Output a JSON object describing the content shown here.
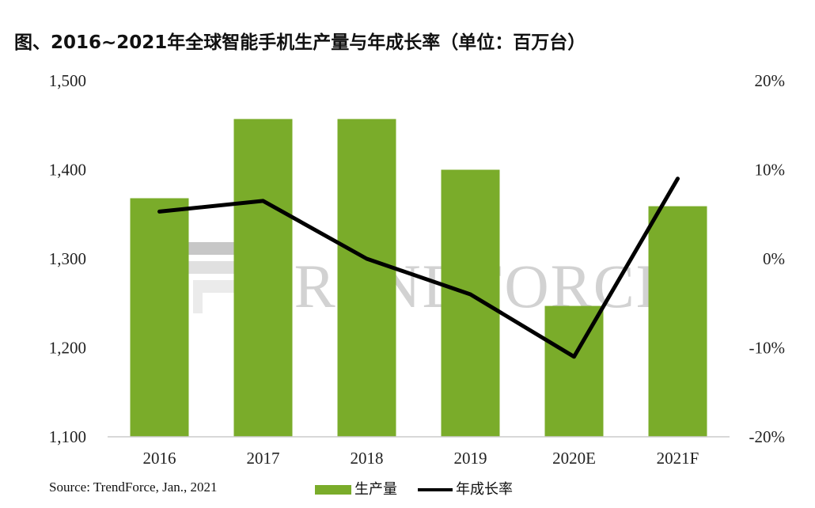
{
  "title": "图、2016~2021年全球智能手机生产量与年成长率（单位：百万台）",
  "source": "Source: TrendForce, Jan., 2021",
  "watermark": "TRENDFORCE",
  "colors": {
    "bar": "#7aac2a",
    "line": "#000000",
    "watermark_text": "#b8b8b8",
    "watermark_logo": "#b8b8b8",
    "axis": "#cccccc"
  },
  "chart_data": {
    "type": "bar",
    "categories": [
      "2016",
      "2017",
      "2018",
      "2019",
      "2020E",
      "2021F"
    ],
    "series": [
      {
        "name": "生产量",
        "type": "bar",
        "axis": "left",
        "values": [
          1368,
          1457,
          1457,
          1400,
          1247,
          1359
        ]
      },
      {
        "name": "年成长率",
        "type": "line",
        "axis": "right",
        "values": [
          5.3,
          6.5,
          0.0,
          -4.0,
          -11.0,
          9.0
        ]
      }
    ],
    "y_left": {
      "min": 1100,
      "max": 1500,
      "ticks": [
        "1,100",
        "1,200",
        "1,300",
        "1,400",
        "1,500"
      ]
    },
    "y_right": {
      "min": -20,
      "max": 20,
      "ticks": [
        "-20%",
        "-10%",
        "0%",
        "10%",
        "20%"
      ]
    },
    "grid": false,
    "legend_position": "bottom"
  }
}
